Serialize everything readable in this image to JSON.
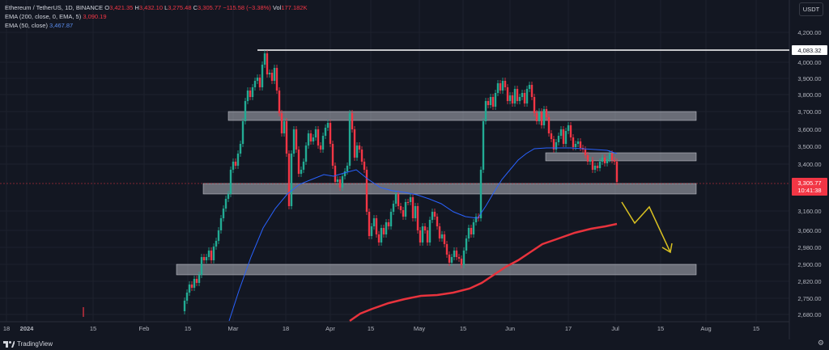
{
  "legend": {
    "symbol": "Ethereum / TetherUS, 1D, BINANCE",
    "o_label": "O",
    "o_value": "3,421.35",
    "h_label": "H",
    "h_value": "3,432.10",
    "l_label": "L",
    "l_value": "3,275.48",
    "c_label": "C",
    "c_value": "3,305.77",
    "change": "−115.58 (−3.38%)",
    "vol_label": "Vol",
    "vol_value": "177.182K",
    "ema200_label": "EMA (200, close, 0, EMA, 5)",
    "ema200_value": "3,090.19",
    "ema50_label": "EMA (50, close)",
    "ema50_value": "3,467.87"
  },
  "currency_button": "USDT",
  "brand": "TradingView",
  "price_badge": {
    "price": "3,305.77",
    "countdown": "10:41:38"
  },
  "high_badge": "4,083.32",
  "colors": {
    "up": "#22ab94",
    "down": "#f23645",
    "ema50": "#2962ff",
    "ema200": "#e8333d",
    "zone": "#b2b5be",
    "arrow": "#d8c021"
  },
  "chart_data": {
    "type": "candlestick",
    "title": "Ethereum / TetherUS, 1D, BINANCE",
    "y_axis_ticks": [
      "4,200.00",
      "4,000.00",
      "3,900.00",
      "3,800.00",
      "3,700.00",
      "3,600.00",
      "3,500.00",
      "3,400.00",
      "3,160.00",
      "3,060.00",
      "2,980.00",
      "2,900.00",
      "2,820.00",
      "2,750.00",
      "2,680.00"
    ],
    "x_axis_ticks": [
      "18",
      "2024",
      "15",
      "Feb",
      "15",
      "Mar",
      "18",
      "Apr",
      "15",
      "May",
      "15",
      "Jun",
      "17",
      "Jul",
      "15",
      "Aug",
      "15"
    ],
    "last_price": 3305.77,
    "resistance_line": 4083.32,
    "support_zones": [
      [
        3660,
        3710
      ],
      [
        3410,
        3460
      ],
      [
        3195,
        3250
      ],
      [
        2870,
        2905
      ]
    ],
    "ema50": {
      "name": "EMA (50, close)",
      "last": 3467.87
    },
    "ema200": {
      "name": "EMA (200, close, 0, EMA, 5)",
      "last": 3090.19
    }
  }
}
